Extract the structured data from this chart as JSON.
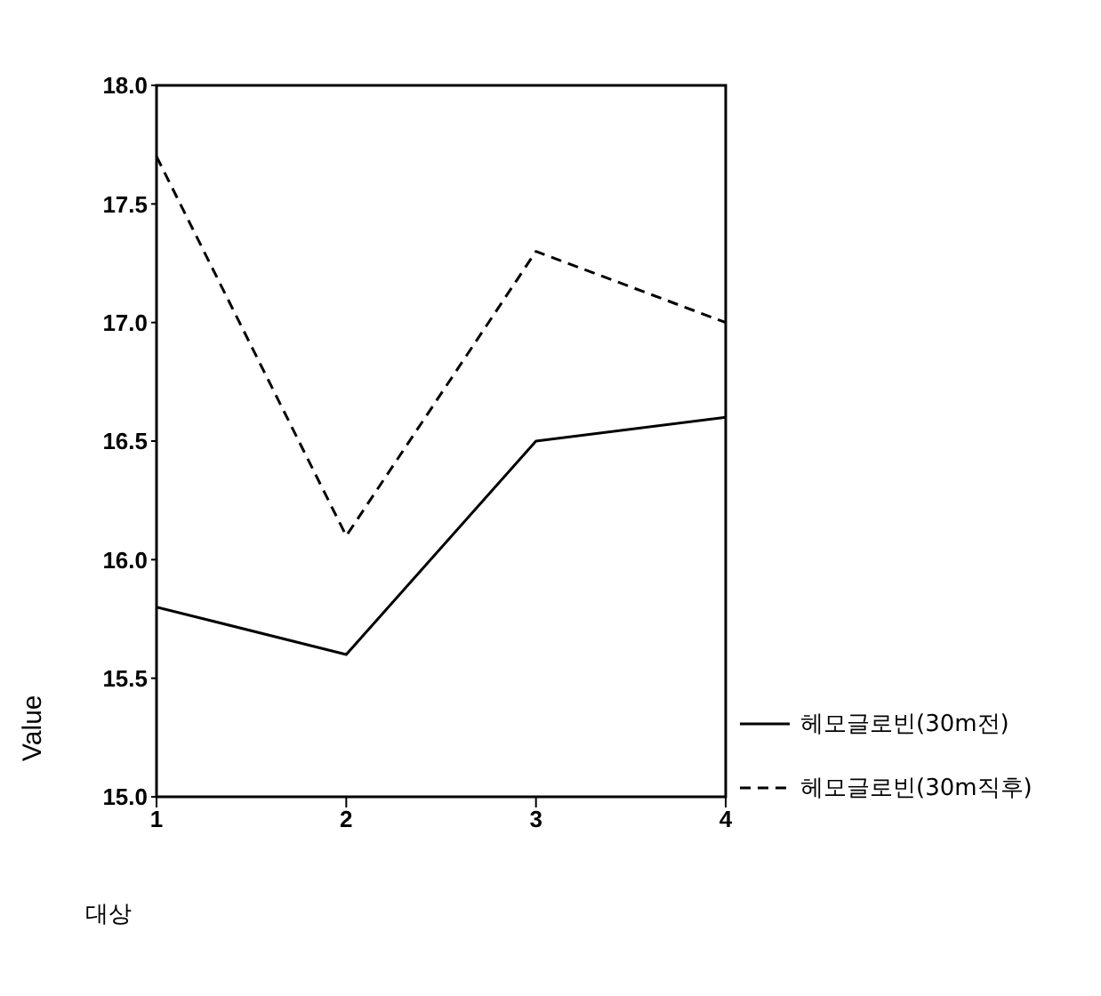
{
  "chart_data": {
    "type": "line",
    "xlabel": "대상",
    "ylabel": "Value",
    "x": [
      1,
      2,
      3,
      4
    ],
    "xlim": [
      1,
      4
    ],
    "xticks": [
      1,
      2,
      3,
      4
    ],
    "ylim": [
      15,
      18
    ],
    "yticks": [
      {
        "value": 15,
        "label": "15.0"
      },
      {
        "value": 15.5,
        "label": "15.5"
      },
      {
        "value": 16,
        "label": "16.0"
      },
      {
        "value": 16.5,
        "label": "16.5"
      },
      {
        "value": 17,
        "label": "17.0"
      },
      {
        "value": 17.5,
        "label": "17.5"
      },
      {
        "value": 18,
        "label": "18.0"
      }
    ],
    "series": [
      {
        "name": "헤모글로빈(30m전)",
        "color": "#000000",
        "line_style": "solid",
        "values": [
          15.8,
          15.6,
          16.5,
          16.6
        ]
      },
      {
        "name": "헤모글로빈(30m직후)",
        "color": "#000000",
        "line_style": "dashed",
        "values": [
          17.7,
          16.1,
          17.3,
          17.0
        ]
      }
    ],
    "grid": false,
    "legend": "right",
    "marker": "none"
  }
}
